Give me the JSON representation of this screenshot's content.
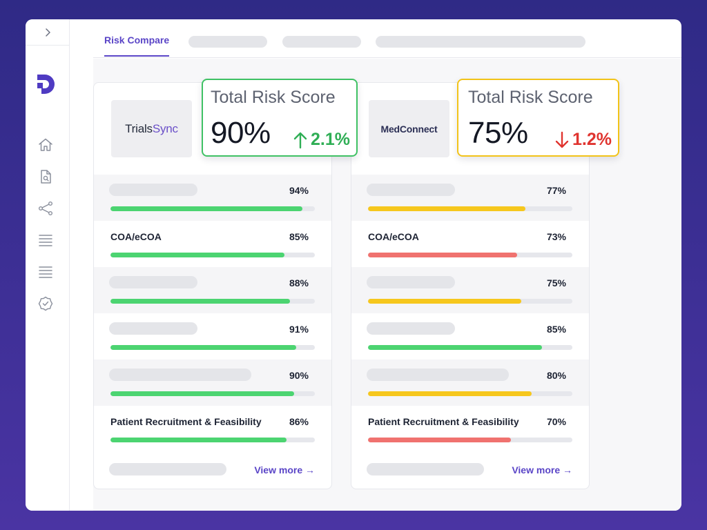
{
  "app": {
    "colors": {
      "accent": "#5a45c7",
      "green": "#4cd471",
      "yellow": "#f6c71d",
      "red": "#f0726f"
    }
  },
  "sidebar": {
    "collapse_icon": "chevron-right-icon",
    "logo_icon": "brand-d-logo",
    "nav": [
      {
        "icon": "home-icon"
      },
      {
        "icon": "document-search-icon"
      },
      {
        "icon": "share-nodes-icon"
      },
      {
        "icon": "list-icon"
      },
      {
        "icon": "list-icon"
      },
      {
        "icon": "badge-check-icon"
      }
    ]
  },
  "tabs": {
    "active_label": "Risk Compare"
  },
  "cards": [
    {
      "company": "TrialsSync",
      "company_part1": "Trials",
      "company_part2": "Sync",
      "score": {
        "title": "Total Risk Score",
        "value": "90%",
        "delta": "2.1%",
        "direction": "up",
        "color": "#3fc164"
      },
      "rows": [
        {
          "label": "",
          "pct_label": "94%",
          "pct": 94,
          "color": "#4cd471"
        },
        {
          "label": "COA/eCOA",
          "pct_label": "85%",
          "pct": 85,
          "color": "#4cd471"
        },
        {
          "label": "",
          "pct_label": "88%",
          "pct": 88,
          "color": "#4cd471"
        },
        {
          "label": "",
          "pct_label": "91%",
          "pct": 91,
          "color": "#4cd471"
        },
        {
          "label": "",
          "pct_label": "90%",
          "pct": 90,
          "color": "#4cd471"
        },
        {
          "label": "Patient Recruitment & Feasibility",
          "pct_label": "86%",
          "pct": 86,
          "color": "#4cd471"
        }
      ],
      "view_more": "View more →"
    },
    {
      "company": "MedConnect",
      "score": {
        "title": "Total Risk Score",
        "value": "75%",
        "delta": "1.2%",
        "direction": "down",
        "color": "#f2c318"
      },
      "rows": [
        {
          "label": "",
          "pct_label": "77%",
          "pct": 77,
          "color": "#f6c71d"
        },
        {
          "label": "COA/eCOA",
          "pct_label": "73%",
          "pct": 73,
          "color": "#f0726f"
        },
        {
          "label": "",
          "pct_label": "75%",
          "pct": 75,
          "color": "#f6c71d"
        },
        {
          "label": "",
          "pct_label": "85%",
          "pct": 85,
          "color": "#4cd471"
        },
        {
          "label": "",
          "pct_label": "80%",
          "pct": 80,
          "color": "#f6c71d"
        },
        {
          "label": "Patient Recruitment & Feasibility",
          "pct_label": "70%",
          "pct": 70,
          "color": "#f0726f"
        }
      ],
      "view_more": "View more →"
    }
  ]
}
